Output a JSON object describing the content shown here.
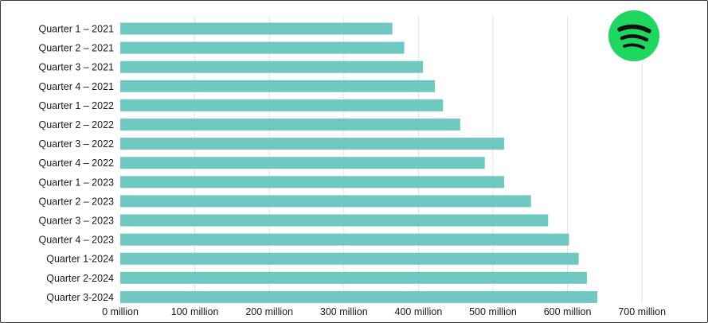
{
  "chart_data": {
    "type": "bar",
    "orientation": "horizontal",
    "title": "",
    "xlabel": "",
    "ylabel": "",
    "categories": [
      "Quarter 1 – 2021",
      "Quarter 2 – 2021",
      "Quarter 3 – 2021",
      "Quarter 4 – 2021",
      "Quarter 1 – 2022",
      "Quarter 2 – 2022",
      "Quarter 3 – 2022",
      "Quarter 4 – 2022",
      "Quarter 1 – 2023",
      "Quarter 2 – 2023",
      "Quarter 3 – 2023",
      "Quarter 4 – 2023",
      "Quarter 1-2024",
      "Quarter 2-2024",
      "Quarter 3-2024"
    ],
    "values": [
      365,
      381,
      406,
      422,
      433,
      456,
      515,
      489,
      515,
      551,
      574,
      602,
      615,
      626,
      640
    ],
    "xlim": [
      0,
      700
    ],
    "xticks": [
      0,
      100,
      200,
      300,
      400,
      500,
      600,
      700
    ],
    "xtick_labels": [
      "0 million",
      "100 million",
      "200 million",
      "300 million",
      "400 million",
      "500 million",
      "600 million",
      "700 million"
    ],
    "grid": "vertical",
    "bar_color": "#6fc9c0",
    "legend": "none"
  },
  "logo": {
    "icon": "spotify-logo-icon",
    "color": "#1ed760"
  }
}
